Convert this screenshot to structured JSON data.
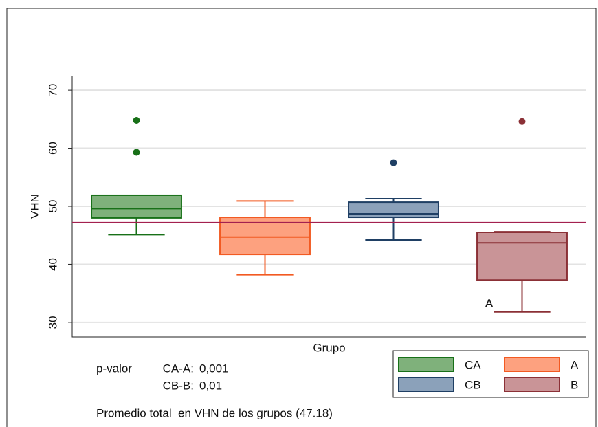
{
  "chart_data": {
    "type": "box",
    "y_label": "VHN",
    "x_label": "Grupo",
    "ylim": [
      27.5,
      72.5
    ],
    "yticks": [
      30,
      40,
      50,
      60,
      70
    ],
    "grid": true,
    "reference_line": {
      "value": 47.18,
      "color": "#a3204f"
    },
    "annotation": {
      "text": "A",
      "x_series": 3,
      "y": 33.2
    },
    "series": [
      {
        "name": "CA",
        "color": "#7fb17b",
        "stroke": "#187018",
        "whislo": 45.1,
        "q1": 48.0,
        "med": 49.6,
        "q3": 51.9,
        "whishi": 51.9,
        "fliers": [
          59.3,
          64.8
        ]
      },
      {
        "name": "A",
        "color": "#fda17f",
        "stroke": "#f25a22",
        "whislo": 38.2,
        "q1": 41.7,
        "med": 44.7,
        "q3": 48.1,
        "whishi": 50.9,
        "fliers": []
      },
      {
        "name": "CB",
        "color": "#8ba1ba",
        "stroke": "#1f3f64",
        "whislo": 44.2,
        "q1": 48.1,
        "med": 48.7,
        "q3": 50.7,
        "whishi": 51.3,
        "fliers": [
          57.5
        ]
      },
      {
        "name": "B",
        "color": "#c99497",
        "stroke": "#8b3036",
        "whislo": 31.8,
        "q1": 37.3,
        "med": 43.7,
        "q3": 45.5,
        "whishi": 45.6,
        "fliers": [
          64.6
        ]
      }
    ],
    "notes": [
      "p-valor",
      "CA-A:",
      "0,001",
      "CB-B:",
      "0,01",
      "Promedio total  en VHN de los grupos (47.18)"
    ]
  }
}
